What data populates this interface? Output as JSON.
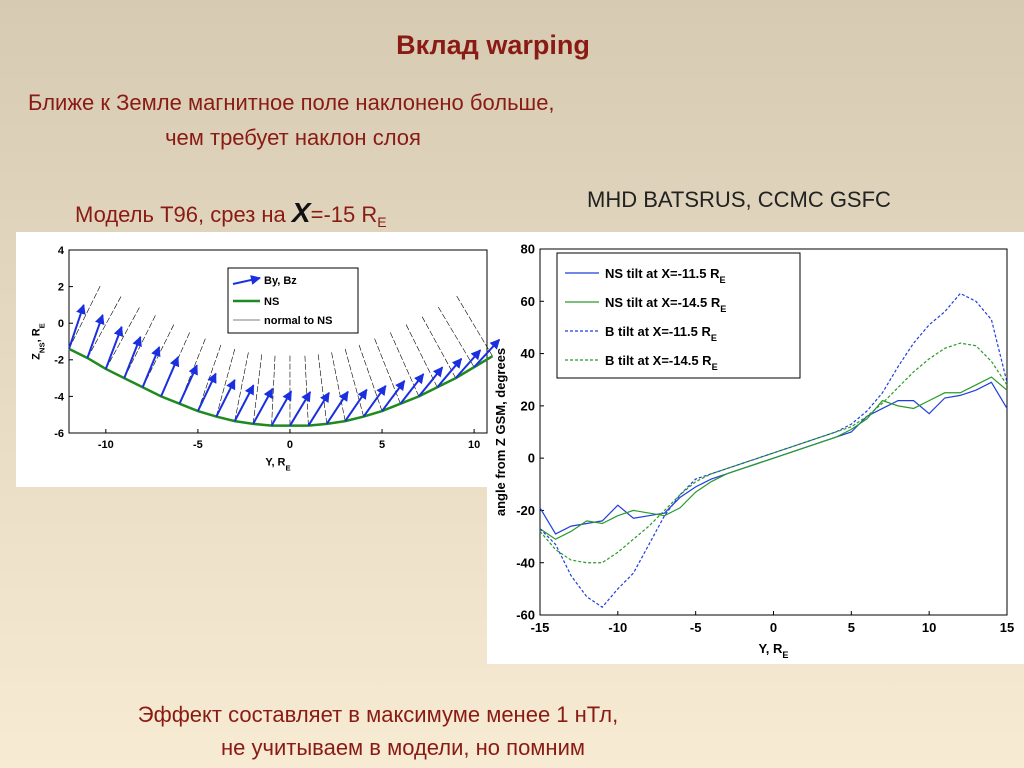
{
  "slide": {
    "title": "Вклад warping",
    "intro": [
      "Ближе к Земле магнитное поле наклонено больше,",
      "чем требует наклон слоя"
    ],
    "left_caption": [
      "Модель T96, срез на ",
      "X",
      "=-15 R",
      "E"
    ],
    "right_caption": "MHD BATSRUS, CCMC GSFC",
    "footer": [
      "Эффект составляет в максимуме менее 1 нТл,",
      "не учитываем в модели, но помним"
    ]
  },
  "chart_data": [
    {
      "type": "quiver",
      "x_label": [
        "Y, R",
        "E"
      ],
      "y_label": [
        "Z",
        "NS",
        ", R",
        "E"
      ],
      "xlim": [
        -12,
        10.7
      ],
      "ylim": [
        -6,
        4
      ],
      "xticks": [
        -10,
        -5,
        0,
        5,
        10
      ],
      "yticks": [
        -6,
        -4,
        -2,
        0,
        2,
        4
      ],
      "vectors": {
        "name": "By, Bz",
        "color": "#1a2fe0",
        "x": [
          -12,
          -11,
          -10,
          -9,
          -8,
          -7,
          -6,
          -5,
          -4,
          -3,
          -2,
          -1,
          0,
          1,
          2,
          3,
          4,
          5,
          6,
          7,
          8,
          9,
          10
        ],
        "y": [
          -1.4,
          -1.9,
          -2.5,
          -3.0,
          -3.5,
          -4.0,
          -4.4,
          -4.8,
          -5.1,
          -5.35,
          -5.5,
          -5.6,
          -5.6,
          -5.6,
          -5.5,
          -5.35,
          -5.1,
          -4.8,
          -4.4,
          -4.0,
          -3.5,
          -3.0,
          -2.4
        ],
        "u": [
          0.8,
          0.83,
          0.86,
          0.88,
          0.9,
          0.92,
          0.95,
          0.97,
          1.0,
          1.02,
          1.05,
          1.07,
          1.1,
          1.12,
          1.15,
          1.17,
          1.2,
          1.22,
          1.25,
          1.28,
          1.31,
          1.34,
          1.37
        ],
        "v": [
          2.4,
          2.35,
          2.3,
          2.25,
          2.2,
          2.15,
          2.1,
          2.05,
          2.0,
          1.96,
          1.92,
          1.88,
          1.84,
          1.8,
          1.76,
          1.72,
          1.68,
          1.65,
          1.62,
          1.59,
          1.56,
          1.53,
          1.5
        ]
      },
      "series": [
        {
          "name": "NS",
          "color": "#1f8a1f",
          "x": [
            -12,
            -11,
            -10,
            -9,
            -8,
            -7,
            -6,
            -5,
            -4,
            -3,
            -2,
            -1,
            0,
            1,
            2,
            3,
            4,
            5,
            6,
            7,
            8,
            9,
            10,
            11
          ],
          "values": [
            -1.4,
            -1.9,
            -2.5,
            -3.0,
            -3.5,
            -4.0,
            -4.4,
            -4.8,
            -5.1,
            -5.35,
            -5.5,
            -5.6,
            -5.6,
            -5.6,
            -5.5,
            -5.35,
            -5.1,
            -4.8,
            -4.4,
            -4.0,
            -3.5,
            -3.0,
            -2.4,
            -1.8
          ]
        }
      ],
      "normals": {
        "name": "normal to NS",
        "color": "#000000"
      }
    },
    {
      "type": "line",
      "x_label": [
        "Y, R",
        "E"
      ],
      "y_label": [
        "angle from Z GSM, degrees"
      ],
      "xlim": [
        -15,
        15
      ],
      "ylim": [
        -60,
        80
      ],
      "xticks": [
        -15,
        -10,
        -5,
        0,
        5,
        10,
        15
      ],
      "yticks": [
        -60,
        -40,
        -20,
        0,
        20,
        40,
        60,
        80
      ],
      "x": [
        -15,
        -14,
        -13,
        -12,
        -11,
        -10,
        -9,
        -8,
        -7,
        -6,
        -5,
        -4,
        -3,
        -2,
        -1,
        0,
        1,
        2,
        3,
        4,
        5,
        6,
        7,
        8,
        9,
        10,
        11,
        12,
        13,
        14,
        15
      ],
      "series": [
        {
          "name": [
            "NS tilt at X=-11.5 R",
            "E"
          ],
          "color": "#1f3fdc",
          "style": "solid",
          "values": [
            -19,
            -29,
            -26,
            -25,
            -24,
            -18,
            -23,
            -22,
            -21,
            -15,
            -11,
            -8,
            -6,
            -4,
            -2,
            0,
            2,
            4,
            6,
            8,
            10,
            16,
            19,
            22,
            22,
            17,
            23,
            24,
            26,
            29,
            19
          ]
        },
        {
          "name": [
            "NS tilt at X=-14.5 R",
            "E"
          ],
          "color": "#2a9a2a",
          "style": "solid",
          "values": [
            -27,
            -31,
            -28,
            -24,
            -25,
            -22,
            -20,
            -21,
            -22,
            -19,
            -13,
            -9,
            -6,
            -4,
            -2,
            0,
            2,
            4,
            6,
            8,
            11,
            15,
            22,
            20,
            19,
            22,
            25,
            25,
            28,
            31,
            26
          ]
        },
        {
          "name": [
            "B tilt at X=-11.5 R",
            "E"
          ],
          "color": "#1f3fdc",
          "style": "dashed",
          "values": [
            -27,
            -33,
            -45,
            -53,
            -57,
            -50,
            -44,
            -33,
            -22,
            -14,
            -8,
            -6,
            -4,
            -2,
            0,
            2,
            4,
            6,
            8,
            10,
            13,
            18,
            25,
            35,
            44,
            51,
            56,
            63,
            60,
            53,
            29
          ]
        },
        {
          "name": [
            "B tilt at X=-14.5 R",
            "E"
          ],
          "color": "#2a9a2a",
          "style": "dashed",
          "values": [
            -28,
            -35,
            -39,
            -40,
            -40,
            -36,
            -31,
            -26,
            -20,
            -14,
            -9,
            -6,
            -4,
            -2,
            0,
            2,
            4,
            6,
            8,
            10,
            12,
            16,
            21,
            27,
            33,
            38,
            42,
            44,
            43,
            37,
            28
          ]
        }
      ]
    }
  ]
}
